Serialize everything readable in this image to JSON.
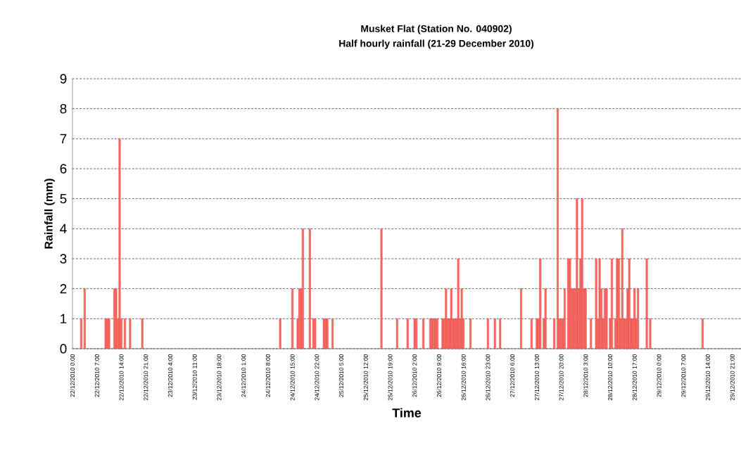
{
  "chart_data": {
    "type": "bar",
    "title": "Musket Flat (Station No. 040902)",
    "subtitle": "Half hourly rainfall (21-29 December 2010)",
    "xlabel": "Time",
    "ylabel": "Rainfall (mm)",
    "color": "#ee3a30",
    "grid": "y",
    "x": [
      "2010-12-22T02:30",
      "2010-12-22T03:30",
      "2010-12-22T09:30",
      "2010-12-22T10:00",
      "2010-12-22T10:30",
      "2010-12-22T12:00",
      "2010-12-22T12:30",
      "2010-12-22T13:00",
      "2010-12-22T13:30",
      "2010-12-22T14:00",
      "2010-12-22T15:00",
      "2010-12-22T16:30",
      "2010-12-22T20:00",
      "2010-12-24T11:30",
      "2010-12-24T15:00",
      "2010-12-24T16:30",
      "2010-12-24T17:00",
      "2010-12-24T17:30",
      "2010-12-24T18:00",
      "2010-12-24T20:00",
      "2010-12-24T21:00",
      "2010-12-24T21:30",
      "2010-12-25T00:00",
      "2010-12-25T00:30",
      "2010-12-25T01:00",
      "2010-12-25T02:30",
      "2010-12-25T16:30",
      "2010-12-25T21:00",
      "2010-12-26T00:00",
      "2010-12-26T02:00",
      "2010-12-26T02:30",
      "2010-12-26T04:30",
      "2010-12-26T06:30",
      "2010-12-26T07:00",
      "2010-12-26T07:30",
      "2010-12-26T08:00",
      "2010-12-26T08:30",
      "2010-12-26T10:00",
      "2010-12-26T10:30",
      "2010-12-26T11:00",
      "2010-12-26T11:30",
      "2010-12-26T12:00",
      "2010-12-26T12:30",
      "2010-12-26T13:00",
      "2010-12-26T13:30",
      "2010-12-26T14:00",
      "2010-12-26T14:30",
      "2010-12-26T15:00",
      "2010-12-26T15:30",
      "2010-12-26T16:00",
      "2010-12-26T18:00",
      "2010-12-26T23:00",
      "2010-12-27T01:00",
      "2010-12-27T02:30",
      "2010-12-27T08:30",
      "2010-12-27T11:30",
      "2010-12-27T13:00",
      "2010-12-27T13:30",
      "2010-12-27T14:00",
      "2010-12-27T15:00",
      "2010-12-27T15:30",
      "2010-12-27T18:00",
      "2010-12-27T19:00",
      "2010-12-27T19:30",
      "2010-12-27T20:00",
      "2010-12-27T20:30",
      "2010-12-27T21:00",
      "2010-12-27T22:00",
      "2010-12-27T22:30",
      "2010-12-27T23:00",
      "2010-12-27T23:30",
      "2010-12-28T00:00",
      "2010-12-28T00:30",
      "2010-12-28T01:00",
      "2010-12-28T01:30",
      "2010-12-28T02:00",
      "2010-12-28T02:30",
      "2010-12-28T03:00",
      "2010-12-28T04:30",
      "2010-12-28T06:00",
      "2010-12-28T06:30",
      "2010-12-28T07:00",
      "2010-12-28T07:30",
      "2010-12-28T08:00",
      "2010-12-28T08:30",
      "2010-12-28T09:00",
      "2010-12-28T10:00",
      "2010-12-28T10:30",
      "2010-12-28T11:30",
      "2010-12-28T12:00",
      "2010-12-28T12:30",
      "2010-12-28T13:00",
      "2010-12-28T13:30",
      "2010-12-28T14:00",
      "2010-12-28T14:30",
      "2010-12-28T15:00",
      "2010-12-28T15:30",
      "2010-12-28T16:00",
      "2010-12-28T16:30",
      "2010-12-28T17:00",
      "2010-12-28T17:30",
      "2010-12-28T18:00",
      "2010-12-28T20:30",
      "2010-12-28T21:30",
      "2010-12-29T12:30"
    ],
    "values": [
      1,
      2,
      1,
      1,
      1,
      2,
      2,
      1,
      7,
      1,
      1,
      1,
      1,
      1,
      2,
      1,
      2,
      2,
      4,
      4,
      1,
      1,
      1,
      1,
      1,
      1,
      4,
      1,
      1,
      1,
      1,
      1,
      1,
      1,
      1,
      1,
      1,
      1,
      1,
      2,
      1,
      1,
      2,
      1,
      1,
      1,
      3,
      1,
      2,
      1,
      1,
      1,
      1,
      1,
      2,
      1,
      1,
      1,
      3,
      1,
      2,
      1,
      8,
      1,
      1,
      1,
      2,
      3,
      3,
      2,
      2,
      2,
      5,
      2,
      3,
      5,
      2,
      2,
      1,
      3,
      1,
      3,
      2,
      1,
      2,
      2,
      1,
      3,
      1,
      3,
      3,
      1,
      4,
      1,
      1,
      2,
      3,
      1,
      1,
      2,
      1,
      2,
      3,
      1,
      1
    ],
    "xlim": [
      "2010-12-22T00:00",
      "2010-12-29T23:30"
    ],
    "ylim": [
      0,
      9
    ],
    "yticks": [
      0,
      1,
      2,
      3,
      4,
      5,
      6,
      7,
      8,
      9
    ],
    "xticks": [
      {
        "value": "2010-12-22T00:00",
        "label": "22/12/2010 0:00"
      },
      {
        "value": "2010-12-22T07:00",
        "label": "22/12/2010 7:00"
      },
      {
        "value": "2010-12-22T14:00",
        "label": "22/12/2010 14:00"
      },
      {
        "value": "2010-12-22T21:00",
        "label": "22/12/2010 21:00"
      },
      {
        "value": "2010-12-23T04:00",
        "label": "23/12/2010 4:00"
      },
      {
        "value": "2010-12-23T11:00",
        "label": "23/12/2010 11:00"
      },
      {
        "value": "2010-12-23T18:00",
        "label": "23/12/2010 18:00"
      },
      {
        "value": "2010-12-24T01:00",
        "label": "24/12/2010 1:00"
      },
      {
        "value": "2010-12-24T08:00",
        "label": "24/12/2010 8:00"
      },
      {
        "value": "2010-12-24T15:00",
        "label": "24/12/2010 15:00"
      },
      {
        "value": "2010-12-24T22:00",
        "label": "24/12/2010 22:00"
      },
      {
        "value": "2010-12-25T05:00",
        "label": "25/12/2010 5:00"
      },
      {
        "value": "2010-12-25T12:00",
        "label": "25/12/2010 12:00"
      },
      {
        "value": "2010-12-25T19:00",
        "label": "25/12/2010 19:00"
      },
      {
        "value": "2010-12-26T02:00",
        "label": "26/12/2010 2:00"
      },
      {
        "value": "2010-12-26T09:00",
        "label": "26/12/2010 9:00"
      },
      {
        "value": "2010-12-26T16:00",
        "label": "26/12/2010 16:00"
      },
      {
        "value": "2010-12-26T23:00",
        "label": "26/12/2010 23:00"
      },
      {
        "value": "2010-12-27T06:00",
        "label": "27/12/2010 6:00"
      },
      {
        "value": "2010-12-27T13:00",
        "label": "27/12/2010 13:00"
      },
      {
        "value": "2010-12-27T20:00",
        "label": "27/12/2010 20:00"
      },
      {
        "value": "2010-12-28T03:00",
        "label": "28/12/2010 3:00"
      },
      {
        "value": "2010-12-28T10:00",
        "label": "28/12/2010 10:00"
      },
      {
        "value": "2010-12-28T17:00",
        "label": "28/12/2010 17:00"
      },
      {
        "value": "2010-12-29T00:00",
        "label": "29/12/2010 0:00"
      },
      {
        "value": "2010-12-29T07:00",
        "label": "29/12/2010 7:00"
      },
      {
        "value": "2010-12-29T14:00",
        "label": "29/12/2010 14:00"
      },
      {
        "value": "2010-12-29T21:00",
        "label": "29/12/2010 21:00"
      }
    ]
  }
}
